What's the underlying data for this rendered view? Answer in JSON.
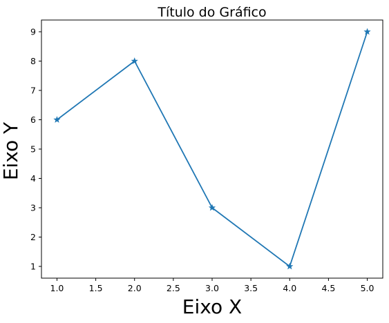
{
  "chart_data": {
    "type": "line",
    "title": "Título do Gráfico",
    "xlabel": "Eixo X",
    "ylabel": "Eixo Y",
    "xlim": [
      0.8,
      5.2
    ],
    "ylim": [
      0.6,
      9.4
    ],
    "xticks": [
      1.0,
      1.5,
      2.0,
      2.5,
      3.0,
      3.5,
      4.0,
      4.5,
      5.0
    ],
    "xtick_labels": [
      "1.0",
      "1.5",
      "2.0",
      "2.5",
      "3.0",
      "3.5",
      "4.0",
      "4.5",
      "5.0"
    ],
    "yticks": [
      1,
      2,
      3,
      4,
      5,
      6,
      7,
      8,
      9
    ],
    "ytick_labels": [
      "1",
      "2",
      "3",
      "4",
      "5",
      "6",
      "7",
      "8",
      "9"
    ],
    "grid": false,
    "marker": "star",
    "color": "#1f77b4",
    "series": [
      {
        "x": [
          1,
          2,
          3,
          4,
          5
        ],
        "y": [
          6,
          8,
          3,
          1,
          9
        ]
      }
    ]
  }
}
